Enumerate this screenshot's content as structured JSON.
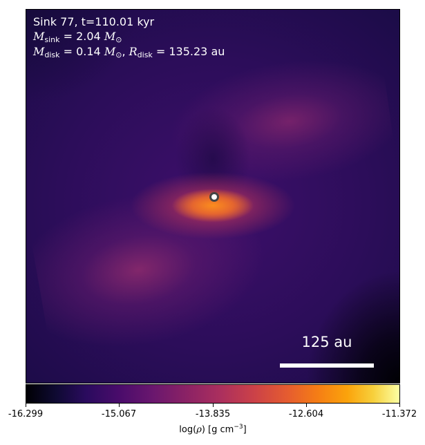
{
  "annotation": {
    "line1": "Sink 77, t=110.01 kyr",
    "msink_value": "2.04",
    "mdisk_value": "0.14",
    "rdisk_value": "135.23",
    "unit_au": "au"
  },
  "scalebar": {
    "label": "125 au"
  },
  "colorbar": {
    "ticks": [
      "-16.299",
      "-15.067",
      "-13.835",
      "-12.604",
      "-11.372"
    ],
    "label_prefix": "log(",
    "label_suffix": ") [g cm",
    "label_exp": "−3",
    "label_end": "]"
  }
}
